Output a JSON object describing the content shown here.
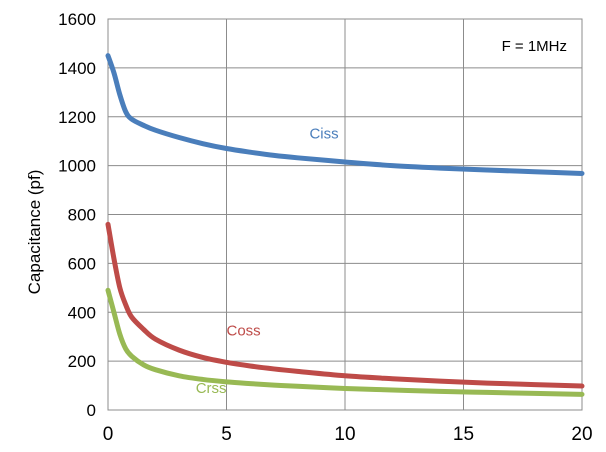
{
  "chart_data": {
    "type": "line",
    "title": "",
    "xlabel": "",
    "ylabel": "Capacitance (pf)",
    "xlim": [
      0,
      20
    ],
    "ylim": [
      0,
      1600
    ],
    "x_ticks": [
      0,
      5,
      10,
      15,
      20
    ],
    "y_ticks": [
      0,
      200,
      400,
      600,
      800,
      1000,
      1200,
      1400,
      1600
    ],
    "grid": true,
    "annotation": "F = 1MHz",
    "series": [
      {
        "name": "Ciss",
        "color": "#4a7ebb",
        "label_at": [
          8.5,
          1110
        ],
        "x": [
          0,
          0.25,
          0.5,
          0.75,
          1,
          1.5,
          2,
          3,
          4,
          5,
          6,
          7,
          8,
          10,
          12,
          14,
          16,
          18,
          20
        ],
        "y": [
          1450,
          1380,
          1290,
          1220,
          1190,
          1165,
          1145,
          1115,
          1090,
          1070,
          1055,
          1042,
          1032,
          1015,
          1000,
          990,
          982,
          975,
          968
        ]
      },
      {
        "name": "Coss",
        "color": "#be4b48",
        "label_at": [
          5,
          305
        ],
        "x": [
          0,
          0.25,
          0.5,
          0.75,
          1,
          1.5,
          2,
          3,
          4,
          5,
          6,
          7,
          8,
          10,
          12,
          14,
          16,
          18,
          20
        ],
        "y": [
          760,
          620,
          500,
          430,
          380,
          330,
          290,
          245,
          215,
          195,
          180,
          168,
          158,
          140,
          128,
          118,
          110,
          104,
          98
        ]
      },
      {
        "name": "Crss",
        "color": "#98b954",
        "label_at": [
          3.7,
          70
        ],
        "x": [
          0,
          0.25,
          0.5,
          0.75,
          1,
          1.5,
          2,
          3,
          4,
          5,
          6,
          7,
          8,
          10,
          12,
          14,
          16,
          18,
          20
        ],
        "y": [
          490,
          400,
          310,
          250,
          220,
          185,
          165,
          140,
          125,
          115,
          108,
          102,
          97,
          88,
          82,
          76,
          72,
          68,
          64
        ]
      }
    ]
  }
}
